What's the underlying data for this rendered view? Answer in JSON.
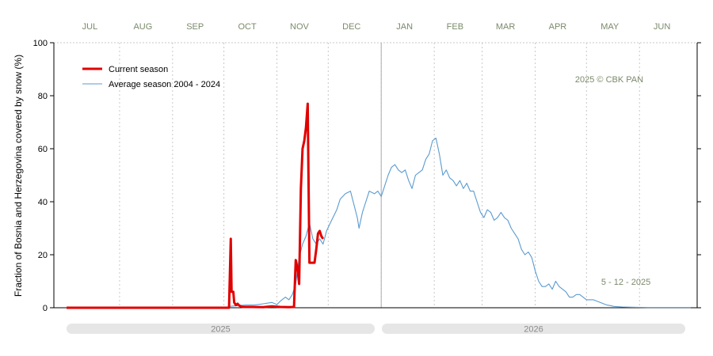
{
  "colors": {
    "current": "#e00000",
    "average": "#5b9bd0",
    "grid": "#c8c8c8",
    "month_label": "#7a8a6a",
    "year_bar": "#e6e6e6",
    "year_label": "#8a8a8a",
    "boundary": "#b8b8b8"
  },
  "chart_data": {
    "type": "line",
    "ylabel": "Fraction of  Bosnia and Herzegovina   covered by snow (%)",
    "ylim": [
      0,
      100
    ],
    "yticks": [
      0,
      20,
      40,
      60,
      80,
      100
    ],
    "x_unit": "days since 1 July 2025",
    "xlim": [
      0,
      365
    ],
    "months": [
      "JUL",
      "AUG",
      "SEP",
      "OCT",
      "NOV",
      "DEC",
      "JAN",
      "FEB",
      "MAR",
      "APR",
      "MAY",
      "JUN"
    ],
    "month_starts": [
      0,
      31,
      62,
      92,
      123,
      153,
      184,
      215,
      243,
      274,
      304,
      335
    ],
    "years": [
      {
        "label": "2025",
        "from": 0,
        "to": 184
      },
      {
        "label": "2026",
        "from": 184,
        "to": 365
      }
    ],
    "grid": true,
    "legend_position": "top-left",
    "series": [
      {
        "name": "Current season",
        "color_key": "current",
        "points": [
          [
            0,
            0
          ],
          [
            95,
            0
          ],
          [
            96,
            26
          ],
          [
            96.5,
            6
          ],
          [
            97.5,
            6
          ],
          [
            98,
            2
          ],
          [
            99,
            1
          ],
          [
            100,
            1.5
          ],
          [
            101,
            0.8
          ],
          [
            102,
            0.5
          ],
          [
            103,
            0.3
          ],
          [
            108,
            0.3
          ],
          [
            115,
            0.2
          ],
          [
            120,
            0.5
          ],
          [
            125,
            0.3
          ],
          [
            130,
            0.2
          ],
          [
            133,
            0.3
          ],
          [
            134,
            18
          ],
          [
            135,
            15
          ],
          [
            136,
            9
          ],
          [
            137,
            45
          ],
          [
            138,
            60
          ],
          [
            139,
            63
          ],
          [
            140,
            68
          ],
          [
            141,
            77
          ],
          [
            142,
            17
          ],
          [
            143,
            17
          ],
          [
            144,
            17
          ],
          [
            145,
            17
          ],
          [
            146,
            22
          ],
          [
            147,
            28
          ],
          [
            148,
            29
          ],
          [
            149,
            27
          ],
          [
            150,
            26
          ]
        ]
      },
      {
        "name": "Average season 2004 - 2024",
        "color_key": "average",
        "points": [
          [
            95,
            0.5
          ],
          [
            100,
            0.8
          ],
          [
            105,
            1
          ],
          [
            110,
            1
          ],
          [
            115,
            1.5
          ],
          [
            120,
            2
          ],
          [
            123,
            1.2
          ],
          [
            125,
            2.5
          ],
          [
            128,
            4
          ],
          [
            130,
            3
          ],
          [
            132,
            5
          ],
          [
            134,
            9
          ],
          [
            136,
            19
          ],
          [
            138,
            24
          ],
          [
            140,
            27
          ],
          [
            142,
            32
          ],
          [
            144,
            26
          ],
          [
            146,
            24
          ],
          [
            148,
            26
          ],
          [
            150,
            24
          ],
          [
            152,
            29
          ],
          [
            155,
            33
          ],
          [
            158,
            37
          ],
          [
            160,
            41
          ],
          [
            163,
            43
          ],
          [
            166,
            44
          ],
          [
            168,
            39
          ],
          [
            170,
            34
          ],
          [
            171,
            30
          ],
          [
            173,
            36
          ],
          [
            175,
            40
          ],
          [
            177,
            44
          ],
          [
            180,
            43
          ],
          [
            182,
            44
          ],
          [
            184,
            42
          ],
          [
            186,
            46
          ],
          [
            188,
            50
          ],
          [
            190,
            53
          ],
          [
            192,
            54
          ],
          [
            194,
            52
          ],
          [
            196,
            51
          ],
          [
            198,
            52
          ],
          [
            200,
            48
          ],
          [
            202,
            45
          ],
          [
            204,
            50
          ],
          [
            206,
            51
          ],
          [
            208,
            52
          ],
          [
            210,
            56
          ],
          [
            212,
            58
          ],
          [
            214,
            63
          ],
          [
            216,
            64
          ],
          [
            218,
            58
          ],
          [
            220,
            50
          ],
          [
            222,
            52
          ],
          [
            224,
            49
          ],
          [
            226,
            48
          ],
          [
            228,
            46
          ],
          [
            230,
            48
          ],
          [
            232,
            45
          ],
          [
            234,
            47
          ],
          [
            236,
            44
          ],
          [
            238,
            44
          ],
          [
            240,
            40
          ],
          [
            242,
            36
          ],
          [
            244,
            34
          ],
          [
            246,
            37
          ],
          [
            248,
            36
          ],
          [
            250,
            33
          ],
          [
            252,
            34
          ],
          [
            254,
            36
          ],
          [
            256,
            34
          ],
          [
            258,
            33
          ],
          [
            260,
            30
          ],
          [
            262,
            28
          ],
          [
            264,
            26
          ],
          [
            266,
            22
          ],
          [
            268,
            20
          ],
          [
            270,
            21
          ],
          [
            272,
            19
          ],
          [
            274,
            14
          ],
          [
            276,
            10
          ],
          [
            278,
            8
          ],
          [
            280,
            8
          ],
          [
            282,
            9
          ],
          [
            284,
            7
          ],
          [
            286,
            10
          ],
          [
            288,
            8
          ],
          [
            290,
            7
          ],
          [
            292,
            6
          ],
          [
            294,
            4
          ],
          [
            296,
            4
          ],
          [
            298,
            5
          ],
          [
            300,
            5
          ],
          [
            302,
            4
          ],
          [
            304,
            3
          ],
          [
            306,
            3
          ],
          [
            308,
            3
          ],
          [
            310,
            2.5
          ],
          [
            312,
            2
          ],
          [
            314,
            1.5
          ],
          [
            316,
            1
          ],
          [
            318,
            0.8
          ],
          [
            320,
            0.5
          ],
          [
            325,
            0.3
          ],
          [
            330,
            0.2
          ],
          [
            340,
            0.1
          ],
          [
            350,
            0.1
          ],
          [
            365,
            0.1
          ]
        ]
      }
    ],
    "annotations": [
      {
        "key": "copyright",
        "text": "2025  © CBK PAN"
      },
      {
        "key": "date",
        "text": "5 - 12 - 2025"
      }
    ]
  }
}
